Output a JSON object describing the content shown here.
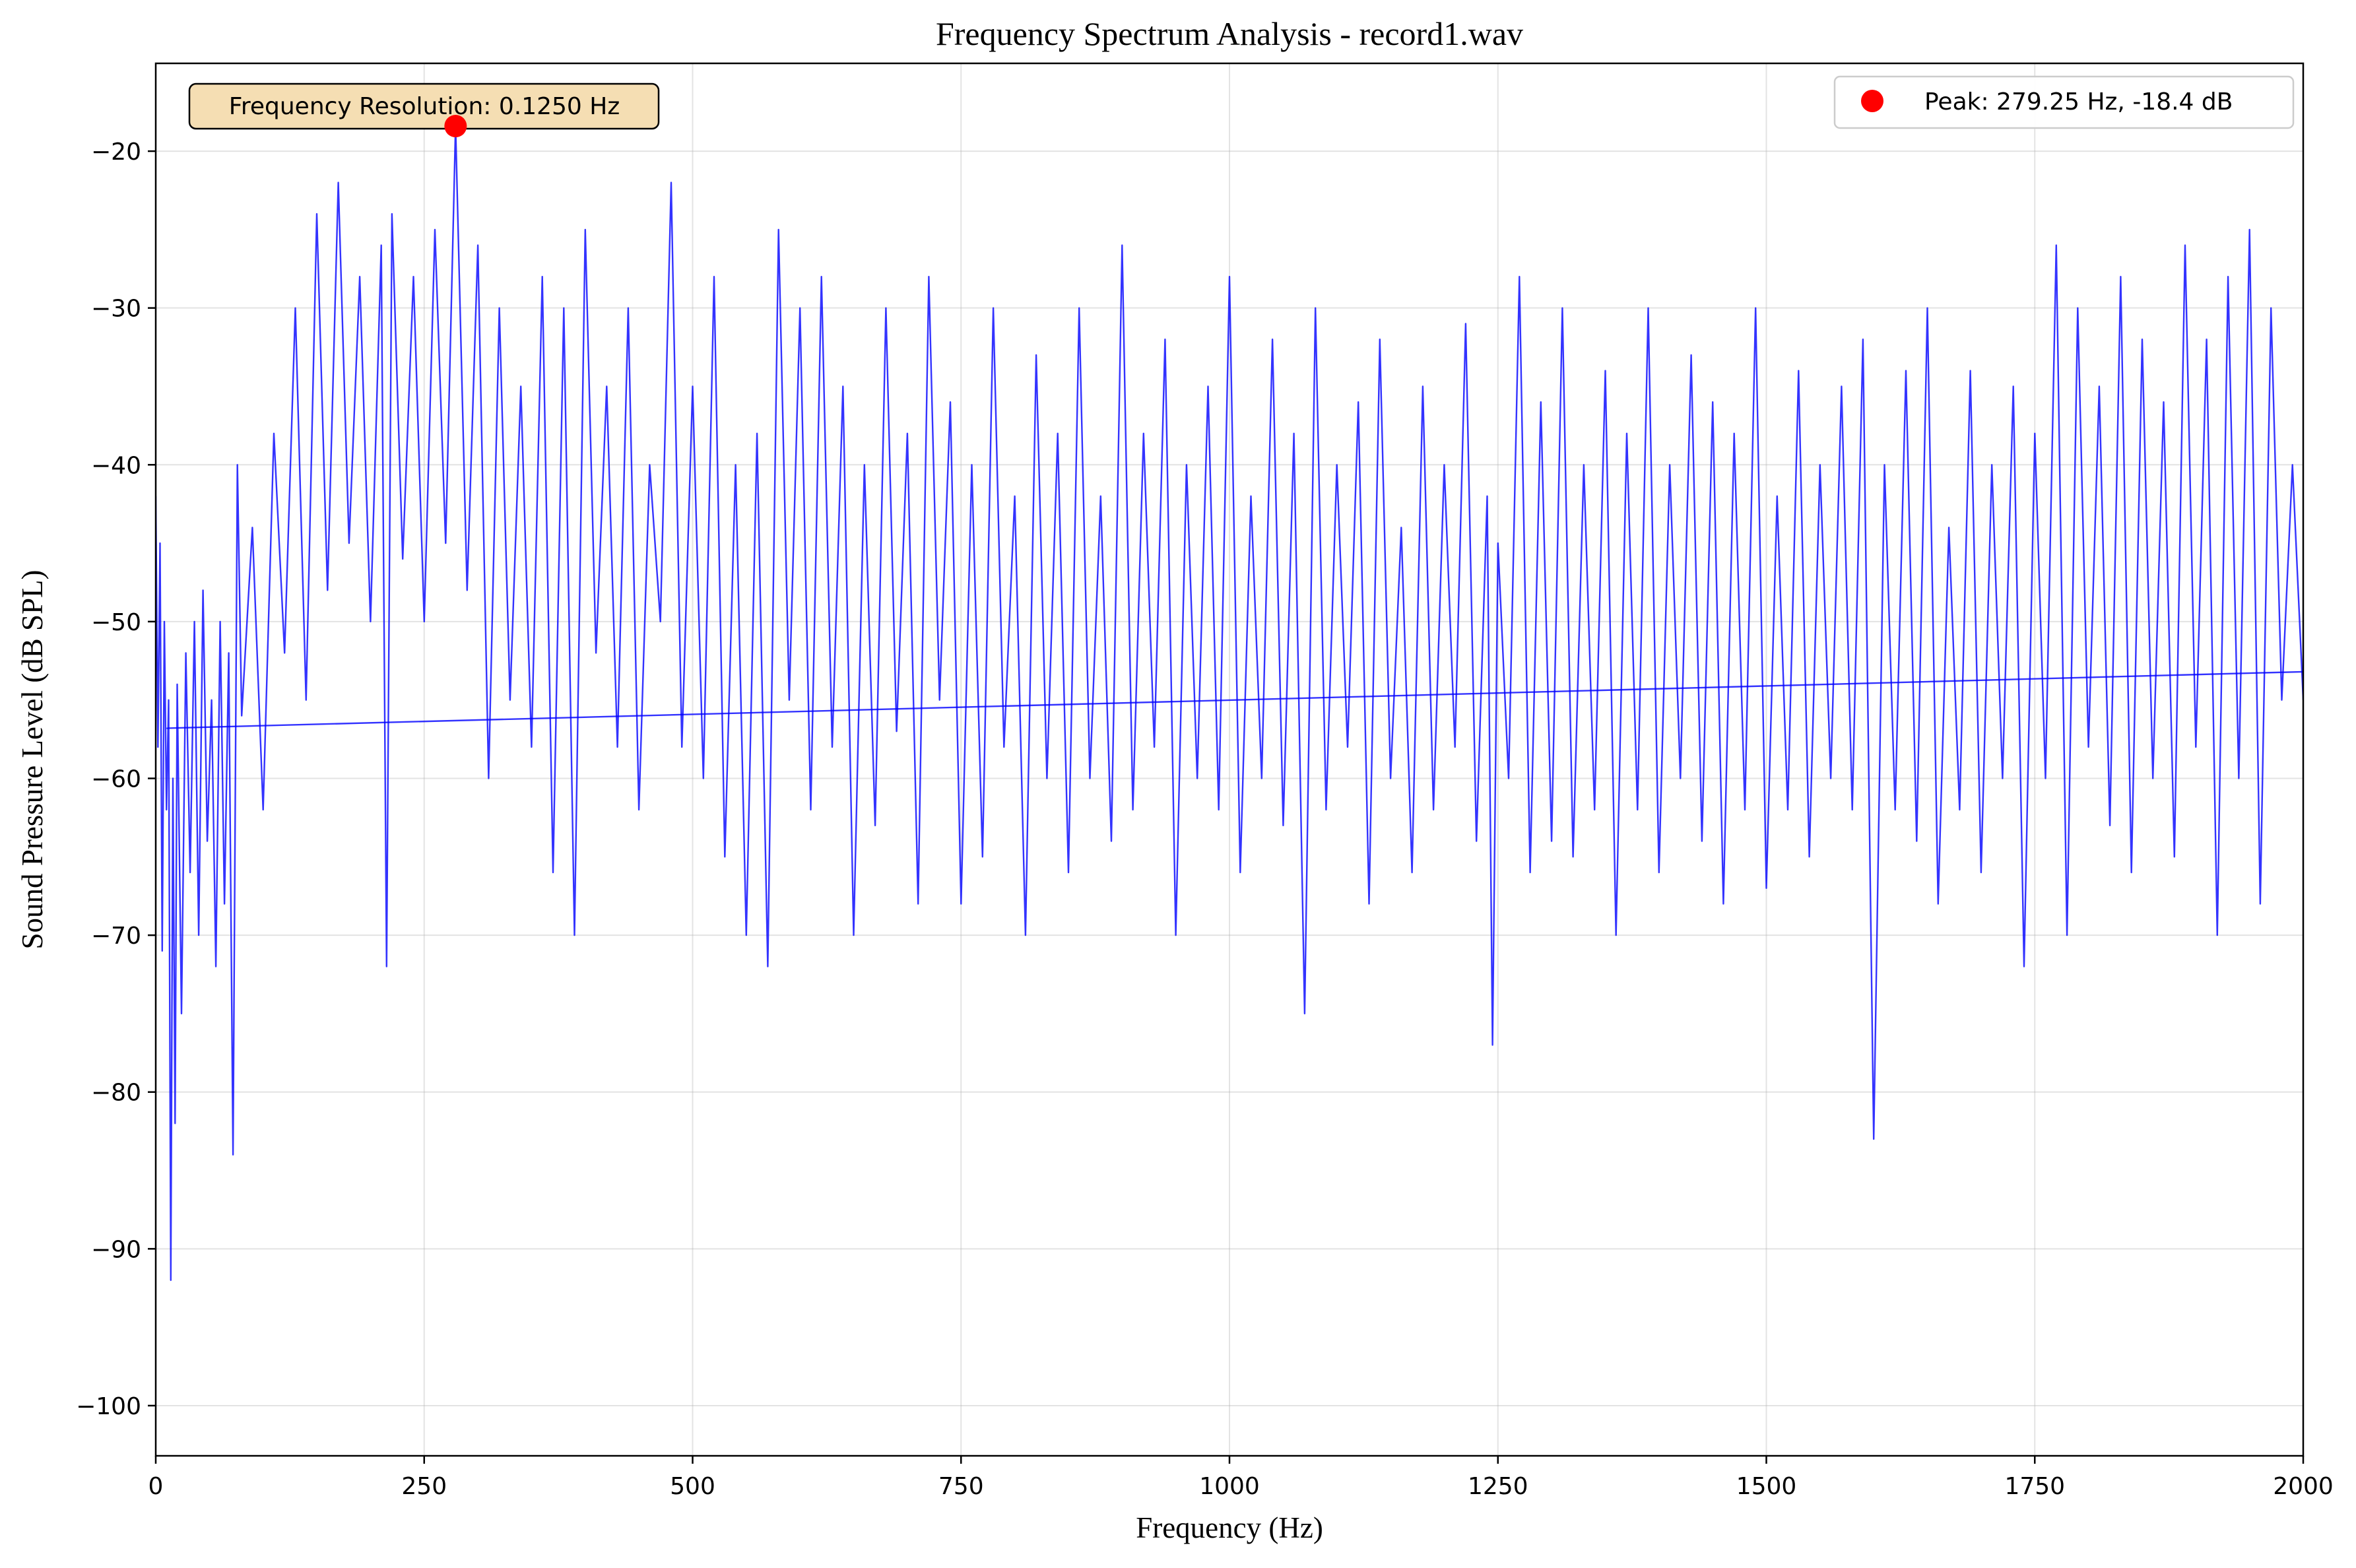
{
  "colors": {
    "spectrum_line": "#0000ff",
    "peak_marker": "#ff0000",
    "annotation_fill": "#f5deb3",
    "grid": "#b0b0b0",
    "axis": "#000000"
  },
  "chart_data": {
    "type": "line",
    "title": "Frequency Spectrum Analysis - record1.wav",
    "xlabel": "Frequency (Hz)",
    "ylabel": "Sound Pressure Level (dB SPL)",
    "xlim": [
      0,
      2000
    ],
    "ylim": [
      -103.2,
      -14.4
    ],
    "xticks": [
      0,
      250,
      500,
      750,
      1000,
      1250,
      1500,
      1750,
      2000
    ],
    "xtick_labels": [
      "0",
      "250",
      "500",
      "750",
      "1000",
      "1250",
      "1500",
      "1750",
      "2000"
    ],
    "yticks": [
      -20,
      -30,
      -40,
      -50,
      -60,
      -70,
      -80,
      -90,
      -100
    ],
    "ytick_labels": [
      "−20",
      "−30",
      "−40",
      "−50",
      "−60",
      "−70",
      "−80",
      "−90",
      "−100"
    ],
    "grid": true,
    "annotation": "Frequency Resolution: 0.1250 Hz",
    "legend": {
      "placement": "top-right",
      "entries": [
        "Peak: 279.25 Hz, -18.4 dB"
      ]
    },
    "peak": {
      "x": 279.25,
      "y": -18.4
    },
    "series": [
      {
        "name": "",
        "x": [
          0,
          2,
          4,
          6,
          8,
          10,
          12,
          14,
          16,
          18,
          20,
          24,
          28,
          32,
          36,
          40,
          44,
          48,
          52,
          56,
          60,
          64,
          68,
          72,
          76,
          80,
          90,
          100,
          110,
          120,
          130,
          140,
          150,
          160,
          170,
          180,
          190,
          200,
          210,
          215,
          220,
          230,
          240,
          250,
          260,
          270,
          279.25,
          290,
          300,
          310,
          320,
          330,
          340,
          350,
          360,
          370,
          380,
          390,
          400,
          410,
          420,
          430,
          440,
          450,
          460,
          470,
          480,
          490,
          500,
          510,
          520,
          530,
          540,
          550,
          560,
          570,
          580,
          590,
          600,
          610,
          620,
          630,
          640,
          650,
          660,
          670,
          680,
          690,
          700,
          710,
          720,
          730,
          740,
          750,
          760,
          770,
          780,
          790,
          800,
          810,
          820,
          830,
          840,
          850,
          860,
          870,
          880,
          890,
          900,
          910,
          920,
          930,
          940,
          950,
          960,
          970,
          980,
          990,
          1000,
          1010,
          1020,
          1030,
          1040,
          1050,
          1060,
          1070,
          1080,
          1090,
          1100,
          1110,
          1120,
          1130,
          1140,
          1150,
          1160,
          1170,
          1180,
          1190,
          1200,
          1210,
          1220,
          1230,
          1240,
          1245,
          1250,
          1260,
          1270,
          1280,
          1290,
          1300,
          1310,
          1320,
          1330,
          1340,
          1350,
          1360,
          1370,
          1380,
          1390,
          1400,
          1410,
          1420,
          1430,
          1440,
          1450,
          1460,
          1470,
          1480,
          1490,
          1500,
          1510,
          1520,
          1530,
          1540,
          1550,
          1560,
          1570,
          1580,
          1590,
          1600,
          1610,
          1620,
          1630,
          1640,
          1650,
          1660,
          1670,
          1680,
          1690,
          1700,
          1710,
          1720,
          1730,
          1740,
          1750,
          1760,
          1770,
          1780,
          1790,
          1800,
          1810,
          1820,
          1830,
          1840,
          1850,
          1860,
          1870,
          1880,
          1890,
          1900,
          1910,
          1920,
          1930,
          1940,
          1950,
          1960,
          1970,
          1980,
          1990,
          2000
        ],
        "y": [
          -42,
          -58,
          -45,
          -71,
          -50,
          -62,
          -55,
          -92,
          -60,
          -82,
          -54,
          -75,
          -52,
          -66,
          -50,
          -70,
          -48,
          -64,
          -55,
          -72,
          -50,
          -68,
          -52,
          -84,
          -40,
          -56,
          -44,
          -62,
          -38,
          -52,
          -30,
          -55,
          -24,
          -48,
          -22,
          -45,
          -28,
          -50,
          -26,
          -72,
          -24,
          -46,
          -28,
          -50,
          -25,
          -45,
          -18.4,
          -48,
          -26,
          -60,
          -30,
          -55,
          -35,
          -58,
          -28,
          -66,
          -30,
          -70,
          -25,
          -52,
          -35,
          -58,
          -30,
          -62,
          -40,
          -50,
          -22,
          -58,
          -35,
          -60,
          -28,
          -65,
          -40,
          -70,
          -38,
          -72,
          -25,
          -55,
          -30,
          -62,
          -28,
          -58,
          -35,
          -70,
          -40,
          -63,
          -30,
          -57,
          -38,
          -68,
          -28,
          -55,
          -36,
          -68,
          -40,
          -65,
          -30,
          -58,
          -42,
          -70,
          -33,
          -60,
          -38,
          -66,
          -30,
          -60,
          -42,
          -64,
          -26,
          -62,
          -38,
          -58,
          -32,
          -70,
          -40,
          -60,
          -35,
          -62,
          -28,
          -66,
          -42,
          -60,
          -32,
          -63,
          -38,
          -75,
          -30,
          -62,
          -40,
          -58,
          -36,
          -68,
          -32,
          -60,
          -44,
          -66,
          -35,
          -62,
          -40,
          -58,
          -31,
          -64,
          -42,
          -77,
          -45,
          -60,
          -28,
          -66,
          -36,
          -64,
          -30,
          -65,
          -40,
          -62,
          -34,
          -70,
          -38,
          -62,
          -30,
          -66,
          -40,
          -60,
          -33,
          -64,
          -36,
          -68,
          -38,
          -62,
          -30,
          -67,
          -42,
          -62,
          -34,
          -65,
          -40,
          -60,
          -35,
          -62,
          -32,
          -83,
          -40,
          -62,
          -34,
          -64,
          -30,
          -68,
          -44,
          -62,
          -34,
          -66,
          -40,
          -60,
          -35,
          -72,
          -38,
          -60,
          -26,
          -70,
          -30,
          -58,
          -35,
          -63,
          -28,
          -66,
          -32,
          -60,
          -36,
          -65,
          -26,
          -58,
          -32,
          -70,
          -28,
          -60,
          -25,
          -68,
          -30,
          -55,
          -40,
          -55
        ]
      }
    ]
  }
}
